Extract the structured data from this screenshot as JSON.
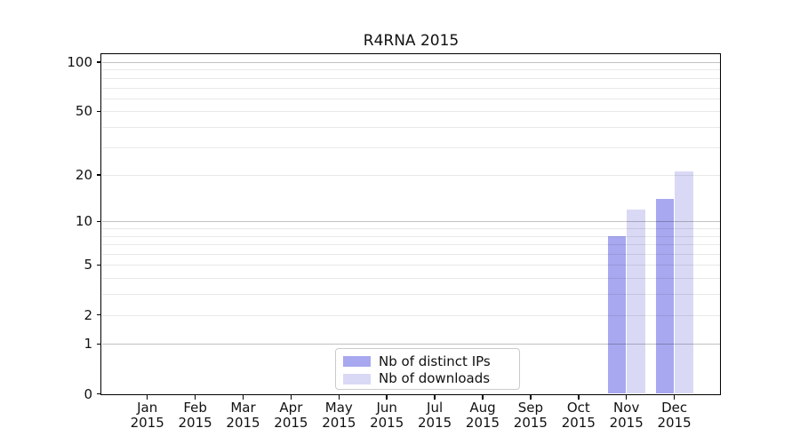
{
  "title": "R4RNA 2015",
  "chart_data": {
    "type": "bar",
    "title": "R4RNA 2015",
    "x_tick_labels": [
      "Jan\n2015",
      "Feb\n2015",
      "Mar\n2015",
      "Apr\n2015",
      "May\n2015",
      "Jun\n2015",
      "Jul\n2015",
      "Aug\n2015",
      "Sep\n2015",
      "Oct\n2015",
      "Nov\n2015",
      "Dec\n2015"
    ],
    "categories": [
      "Jan 2015",
      "Feb 2015",
      "Mar 2015",
      "Apr 2015",
      "May 2015",
      "Jun 2015",
      "Jul 2015",
      "Aug 2015",
      "Sep 2015",
      "Oct 2015",
      "Nov 2015",
      "Dec 2015"
    ],
    "series": [
      {
        "name": "Nb of distinct IPs",
        "color": "#a8a8f0",
        "values": [
          0,
          0,
          0,
          0,
          0,
          0,
          0,
          0,
          0,
          0,
          8,
          14
        ]
      },
      {
        "name": "Nb of downloads",
        "color": "#d9d9f6",
        "values": [
          0,
          0,
          0,
          0,
          0,
          0,
          0,
          0,
          0,
          0,
          12,
          21
        ]
      }
    ],
    "yscale": "symlog",
    "ylim": [
      0,
      112
    ],
    "y_tick_values": [
      0,
      1,
      2,
      5,
      10,
      20,
      50,
      100
    ],
    "y_tick_labels": [
      "0",
      "1",
      "2",
      "5",
      "10",
      "20",
      "50",
      "100"
    ],
    "y_major_gridlines": [
      1,
      10,
      100
    ],
    "y_minor_gridlines": [
      2,
      3,
      4,
      5,
      6,
      7,
      8,
      9,
      20,
      30,
      40,
      50,
      60,
      70,
      80,
      90
    ],
    "grid": "on",
    "legend_position": "lower center",
    "colors": {
      "bar_distinct_ips": "#a8a8f0",
      "bar_downloads": "#d9d9f6",
      "grid_major": "#c3c3c3",
      "grid_minor": "#e9e9e9",
      "axis": "#000000",
      "text": "#111111"
    }
  },
  "legend": {
    "items": [
      {
        "label": "Nb of distinct IPs",
        "swatch": "distinct-ips-swatch"
      },
      {
        "label": "Nb of downloads",
        "swatch": "downloads-swatch"
      }
    ]
  }
}
